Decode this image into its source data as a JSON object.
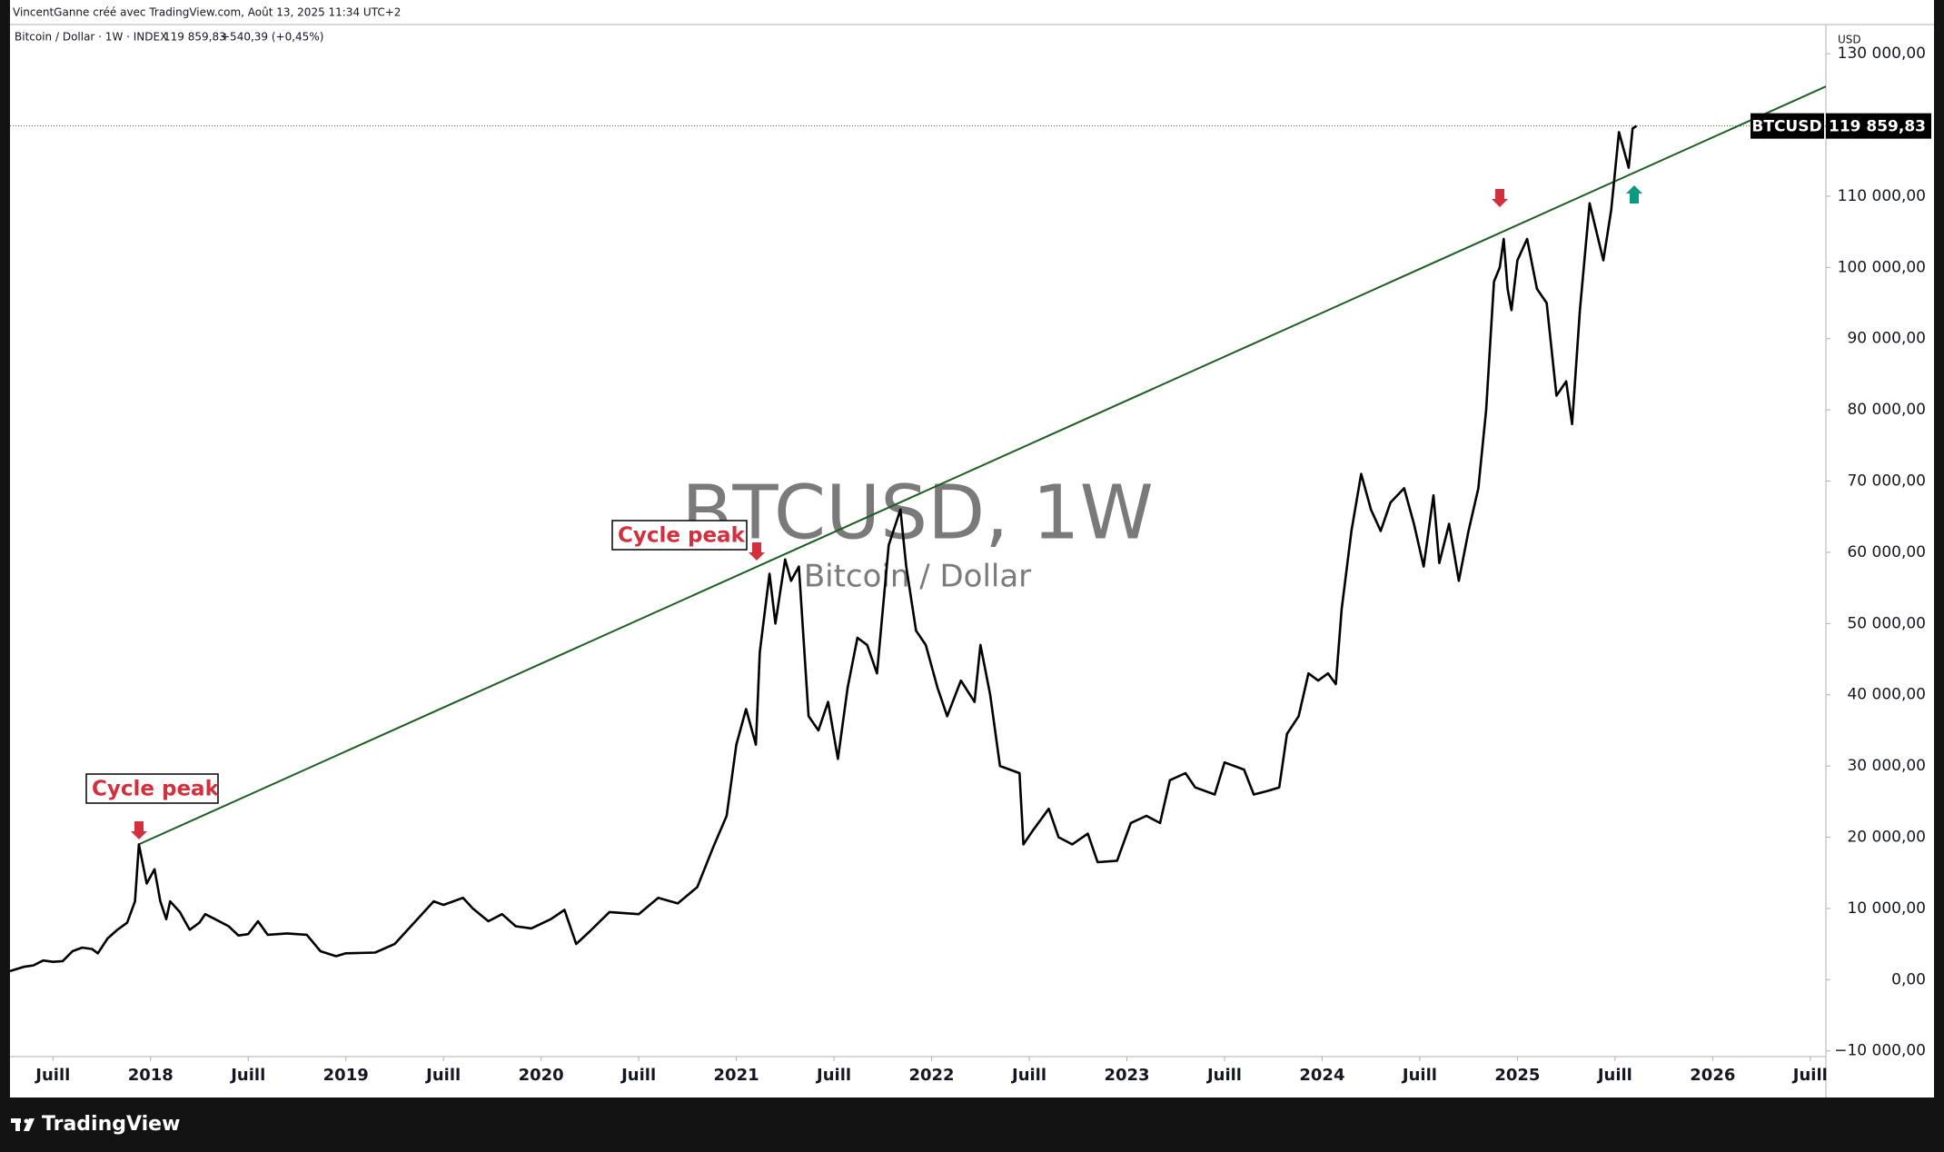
{
  "credit": "VincentGanne créé avec TradingView.com, Août 13, 2025 11:34 UTC+2",
  "header": {
    "instrument": "Bitcoin / Dollar · 1W · INDEX",
    "close": "119 859,83",
    "change": "+540,39 (+0,45%)"
  },
  "brand": "TradingView",
  "chart_data": {
    "type": "line",
    "watermark": "BTCUSD, 1W",
    "subtitle": "Bitcoin / Dollar",
    "y_unit": "USD",
    "grid": false,
    "xlim": [
      2017.28,
      2026.58
    ],
    "ylim": [
      -10800,
      134100
    ],
    "xticks": [
      {
        "value": 2017.5,
        "label": "Juill"
      },
      2018,
      {
        "value": 2018.5,
        "label": "Juill"
      },
      2019,
      {
        "value": 2019.5,
        "label": "Juill"
      },
      2020,
      {
        "value": 2020.5,
        "label": "Juill"
      },
      2021,
      {
        "value": 2021.5,
        "label": "Juill"
      },
      2022,
      {
        "value": 2022.5,
        "label": "Juill"
      },
      2023,
      {
        "value": 2023.5,
        "label": "Juill"
      },
      2024,
      {
        "value": 2024.5,
        "label": "Juill"
      },
      2025,
      {
        "value": 2025.5,
        "label": "Juill"
      },
      2026,
      {
        "value": 2026.5,
        "label": "Juill"
      }
    ],
    "yticks": [
      {
        "value": -10000,
        "label": "−10 000,00"
      },
      {
        "value": 0,
        "label": "0,00"
      },
      {
        "value": 10000,
        "label": "10 000,00"
      },
      {
        "value": 20000,
        "label": "20 000,00"
      },
      {
        "value": 30000,
        "label": "30 000,00"
      },
      {
        "value": 40000,
        "label": "40 000,00"
      },
      {
        "value": 50000,
        "label": "50 000,00"
      },
      {
        "value": 60000,
        "label": "60 000,00"
      },
      {
        "value": 70000,
        "label": "70 000,00"
      },
      {
        "value": 80000,
        "label": "80 000,00"
      },
      {
        "value": 90000,
        "label": "90 000,00"
      },
      {
        "value": 100000,
        "label": "100 000,00"
      },
      {
        "value": 110000,
        "label": "110 000,00"
      },
      {
        "value": 130000,
        "label": "130 000,00"
      }
    ],
    "series": [
      {
        "name": "BTCUSD",
        "color": "#000000",
        "x": [
          2017.28,
          2017.35,
          2017.4,
          2017.45,
          2017.5,
          2017.55,
          2017.6,
          2017.65,
          2017.7,
          2017.73,
          2017.78,
          2017.83,
          2017.88,
          2017.92,
          2017.94,
          2017.98,
          2018.02,
          2018.05,
          2018.08,
          2018.1,
          2018.15,
          2018.2,
          2018.25,
          2018.28,
          2018.33,
          2018.4,
          2018.45,
          2018.5,
          2018.55,
          2018.6,
          2018.7,
          2018.8,
          2018.87,
          2018.95,
          2019.0,
          2019.15,
          2019.25,
          2019.35,
          2019.45,
          2019.5,
          2019.6,
          2019.65,
          2019.73,
          2019.8,
          2019.87,
          2019.95,
          2020.05,
          2020.12,
          2020.18,
          2020.25,
          2020.35,
          2020.5,
          2020.6,
          2020.7,
          2020.8,
          2020.88,
          2020.95,
          2021.0,
          2021.05,
          2021.1,
          2021.12,
          2021.17,
          2021.2,
          2021.25,
          2021.28,
          2021.32,
          2021.37,
          2021.42,
          2021.47,
          2021.52,
          2021.57,
          2021.62,
          2021.67,
          2021.72,
          2021.78,
          2021.84,
          2021.87,
          2021.92,
          2021.97,
          2022.03,
          2022.08,
          2022.15,
          2022.22,
          2022.25,
          2022.3,
          2022.35,
          2022.45,
          2022.47,
          2022.52,
          2022.6,
          2022.65,
          2022.72,
          2022.8,
          2022.85,
          2022.95,
          2023.02,
          2023.1,
          2023.17,
          2023.22,
          2023.3,
          2023.35,
          2023.45,
          2023.5,
          2023.6,
          2023.65,
          2023.72,
          2023.78,
          2023.82,
          2023.88,
          2023.93,
          2023.98,
          2024.03,
          2024.07,
          2024.1,
          2024.15,
          2024.2,
          2024.25,
          2024.3,
          2024.35,
          2024.42,
          2024.47,
          2024.52,
          2024.57,
          2024.6,
          2024.65,
          2024.7,
          2024.75,
          2024.8,
          2024.84,
          2024.88,
          2024.91,
          2024.93,
          2024.95,
          2024.97,
          2025.0,
          2025.05,
          2025.1,
          2025.15,
          2025.2,
          2025.25,
          2025.28,
          2025.32,
          2025.35,
          2025.37,
          2025.44,
          2025.48,
          2025.52,
          2025.55,
          2025.57,
          2025.59,
          2025.61
        ],
        "values": [
          1200,
          1800,
          2000,
          2700,
          2500,
          2600,
          4000,
          4500,
          4300,
          3700,
          5800,
          7000,
          8000,
          11000,
          19000,
          13500,
          15500,
          11000,
          8500,
          11000,
          9500,
          7000,
          8000,
          9200,
          8500,
          7500,
          6200,
          6400,
          8200,
          6300,
          6500,
          6300,
          4000,
          3300,
          3700,
          3800,
          5000,
          8000,
          11000,
          10500,
          11500,
          10000,
          8200,
          9200,
          7500,
          7200,
          8500,
          9800,
          5000,
          6800,
          9500,
          9200,
          11500,
          10700,
          13000,
          18500,
          23000,
          33000,
          38000,
          33000,
          46000,
          57000,
          50000,
          59000,
          56000,
          58000,
          37000,
          35000,
          39000,
          31000,
          41000,
          48000,
          47000,
          43000,
          61000,
          66000,
          58000,
          49000,
          47000,
          41000,
          37000,
          42000,
          39000,
          47000,
          40000,
          30000,
          29000,
          19000,
          21000,
          24000,
          20000,
          19000,
          20500,
          16500,
          16700,
          22000,
          23000,
          22000,
          28000,
          29000,
          27000,
          26000,
          30500,
          29500,
          26000,
          26500,
          27000,
          34500,
          37000,
          43000,
          42000,
          43000,
          41500,
          52000,
          63000,
          71000,
          66000,
          63000,
          67000,
          69000,
          64000,
          58000,
          68000,
          58500,
          64000,
          56000,
          63000,
          69000,
          80000,
          98000,
          100000,
          104000,
          97000,
          94000,
          101000,
          104000,
          97000,
          95000,
          82000,
          84000,
          78000,
          94000,
          103000,
          109000,
          101000,
          108000,
          119000,
          116000,
          114000,
          119500,
          119859.83
        ]
      }
    ],
    "last_price": {
      "value": 119859.83,
      "label": "119 859,83"
    },
    "trendline": {
      "color": "#1b5e20",
      "x": [
        2017.94,
        2026.58
      ],
      "values": [
        19000,
        125400
      ]
    },
    "annotations": [
      "Cycle peak",
      "Cycle peak"
    ]
  }
}
